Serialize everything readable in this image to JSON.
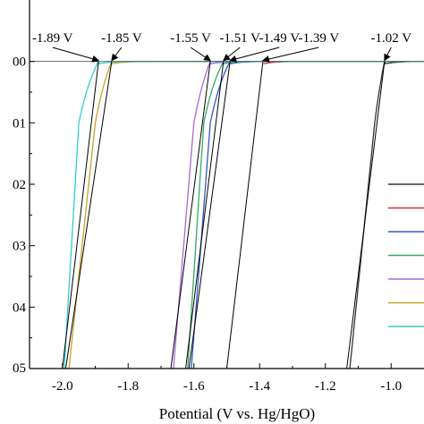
{
  "chart_data": {
    "type": "line",
    "xlabel": "Potential (V vs. Hg/HgO)",
    "ylabel": "",
    "xlim": [
      -2.1,
      -0.9
    ],
    "ylim": [
      -0.05,
      0.01
    ],
    "grid": false,
    "legend": "right",
    "x_ticks": [
      {
        "value": -2.0,
        "label": "-2.0"
      },
      {
        "value": -1.8,
        "label": "-1.8"
      },
      {
        "value": -1.6,
        "label": "-1.6"
      },
      {
        "value": -1.4,
        "label": "-1.4"
      },
      {
        "value": -1.2,
        "label": "-1.2"
      },
      {
        "value": -1.0,
        "label": "-1.0"
      }
    ],
    "y_ticks": [
      {
        "value": 0.0,
        "label": "00"
      },
      {
        "value": -0.01,
        "label": "01"
      },
      {
        "value": -0.02,
        "label": "02"
      },
      {
        "value": -0.03,
        "label": "03"
      },
      {
        "value": -0.04,
        "label": "04"
      },
      {
        "value": -0.05,
        "label": "05"
      }
    ],
    "annotations": [
      {
        "label": "-1.89 V",
        "x": -1.89,
        "label_x": -2.03
      },
      {
        "label": "-1.85 V",
        "x": -1.85,
        "label_x": -1.82
      },
      {
        "label": "-1.55 V",
        "x": -1.55,
        "label_x": -1.61
      },
      {
        "label": "-1.51 V",
        "x": -1.51,
        "label_x": -1.46
      },
      {
        "label": "-1.49 V",
        "x": -1.49,
        "label_x": -1.34
      },
      {
        "label": "-1.39 V",
        "x": -1.39,
        "label_x": -1.22
      },
      {
        "label": "-1.02 V",
        "x": -1.02,
        "label_x": -1.0
      }
    ],
    "series": [
      {
        "color": "#333333",
        "onset": -1.02,
        "k": 3.0,
        "vertical": {
          "x_top": -1.05,
          "x_bottom": -1.135
        }
      },
      {
        "color": "#cc3333",
        "onset": -1.39,
        "k": 2.8,
        "vertical": {
          "x_top": -1.39,
          "x_bottom": -1.5
        }
      },
      {
        "color": "#3355cc",
        "onset": -1.49,
        "k": 3.2,
        "vertical": {
          "x_top": -1.55,
          "x_bottom": -1.615
        }
      },
      {
        "color": "#33aa66",
        "onset": -1.51,
        "k": 3.1,
        "vertical": {
          "x_top": -1.57,
          "x_bottom": -1.625
        }
      },
      {
        "color": "#aa66dd",
        "onset": -1.55,
        "k": 3.0,
        "vertical": {
          "x_top": -1.6,
          "x_bottom": -1.67
        }
      },
      {
        "color": "#c9a227",
        "onset": -1.85,
        "k": 3.0,
        "vertical": {
          "x_top": -1.9,
          "x_bottom": -1.99
        }
      },
      {
        "color": "#33cccc",
        "onset": -1.89,
        "k": 3.1,
        "vertical": {
          "x_top": -1.95,
          "x_bottom": -2.0
        }
      }
    ]
  }
}
